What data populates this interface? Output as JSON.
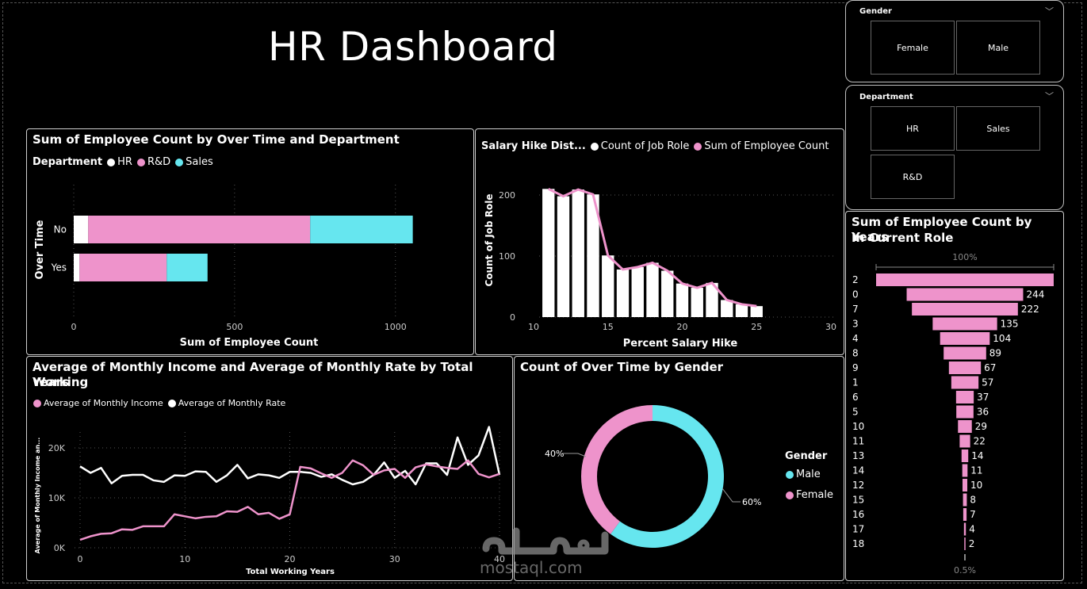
{
  "page": {
    "title": "HR Dashboard"
  },
  "slicers": {
    "gender": {
      "label": "Gender",
      "options": [
        "Female",
        "Male"
      ]
    },
    "department": {
      "label": "Department",
      "options": [
        "HR",
        "Sales",
        "R&D"
      ]
    }
  },
  "colors": {
    "hr": "#ffffff",
    "rd": "#ee93cb",
    "sales": "#66e6ef",
    "pink": "#ee93cb",
    "cyan": "#66e6ef",
    "white": "#ffffff"
  },
  "overtime_chart": {
    "title": "Sum of Employee Count by Over Time and Department",
    "legend_title": "Department",
    "legend": [
      "HR",
      "R&D",
      "Sales"
    ],
    "xlabel": "Sum of Employee Count",
    "ylabel": "Over Time",
    "ticks": [
      "0",
      "500",
      "1000"
    ]
  },
  "salary_chart": {
    "title": "Salary Hike Dist...",
    "legend": [
      "Count of Job Role",
      "Sum of Employee Count"
    ],
    "xlabel": "Percent Salary Hike",
    "ylabel": "Count of Job Role",
    "xticks": [
      "10",
      "15",
      "20",
      "25",
      "30"
    ],
    "yticks": [
      "0",
      "100",
      "200"
    ]
  },
  "income_chart": {
    "title_line1": "Average of Monthly Income and Average of Monthly Rate by Total Working",
    "title_line2": "Years",
    "legend": [
      "Average of Monthly Income",
      "Average of Monthly Rate"
    ],
    "xlabel": "Total Working Years",
    "ylabel": "Average of Monthly Income an...",
    "xticks": [
      "0",
      "10",
      "20",
      "30",
      "40"
    ],
    "yticks": [
      "0K",
      "10K",
      "20K"
    ]
  },
  "gender_chart": {
    "title": "Count of Over Time by Gender",
    "legend_title": "Gender",
    "legend": [
      "Male",
      "Female"
    ],
    "label_female": "40%",
    "label_male": "60%"
  },
  "funnel_chart": {
    "title_line1": "Sum of Employee Count by Years",
    "title_line2": "In Current Role",
    "top_label": "100%",
    "bottom_label": "0.5%"
  },
  "chart_data": [
    {
      "type": "bar",
      "title": "Sum of Employee Count by Over Time and Department",
      "orientation": "horizontal-stacked",
      "categories": [
        "No",
        "Yes"
      ],
      "series": [
        {
          "name": "HR",
          "values": [
            45,
            18
          ]
        },
        {
          "name": "R&D",
          "values": [
            690,
            271
          ]
        },
        {
          "name": "Sales",
          "values": [
            319,
            127
          ]
        }
      ],
      "xlabel": "Sum of Employee Count",
      "ylabel": "Over Time",
      "xlim": [
        0,
        1100
      ]
    },
    {
      "type": "bar",
      "title": "Salary Hike Dist...",
      "x": [
        11,
        12,
        13,
        14,
        15,
        16,
        17,
        18,
        19,
        20,
        21,
        22,
        23,
        24,
        25
      ],
      "series": [
        {
          "name": "Count of Job Role",
          "values": [
            210,
            198,
            209,
            201,
            101,
            78,
            82,
            89,
            76,
            55,
            48,
            56,
            28,
            21,
            18
          ]
        },
        {
          "name": "Sum of Employee Count",
          "values": [
            210,
            198,
            209,
            201,
            101,
            78,
            82,
            89,
            76,
            55,
            48,
            56,
            28,
            21,
            18
          ]
        }
      ],
      "xlabel": "Percent Salary Hike",
      "ylabel": "Count of Job Role",
      "xlim": [
        10,
        30
      ],
      "ylim": [
        0,
        230
      ]
    },
    {
      "type": "line",
      "title": "Average of Monthly Income and Average of Monthly Rate by Total Working Years",
      "x": [
        0,
        1,
        2,
        3,
        4,
        5,
        6,
        7,
        8,
        9,
        10,
        11,
        12,
        13,
        14,
        15,
        16,
        17,
        18,
        19,
        20,
        21,
        22,
        23,
        24,
        25,
        26,
        27,
        28,
        29,
        30,
        31,
        32,
        33,
        34,
        35,
        36,
        37,
        38,
        39,
        40
      ],
      "series": [
        {
          "name": "Average of Monthly Income",
          "values": [
            1600,
            2300,
            2800,
            2900,
            3700,
            3600,
            4300,
            4300,
            4300,
            6700,
            6300,
            5900,
            6200,
            6300,
            7300,
            7200,
            8200,
            6700,
            7000,
            5800,
            6700,
            16200,
            15900,
            14900,
            14000,
            15000,
            17500,
            16500,
            14600,
            15500,
            15800,
            14000,
            16100,
            16700,
            16300,
            16000,
            15800,
            17500,
            14800,
            14100,
            14800
          ]
        },
        {
          "name": "Average of Monthly Rate",
          "values": [
            16300,
            15000,
            16000,
            12900,
            14400,
            14600,
            14600,
            13500,
            13200,
            14500,
            14400,
            15300,
            15200,
            13200,
            14500,
            16600,
            13900,
            14700,
            14500,
            14000,
            15200,
            15200,
            15000,
            14200,
            14700,
            13600,
            12700,
            13200,
            14600,
            17100,
            14000,
            15400,
            12700,
            16900,
            16900,
            14600,
            22100,
            16600,
            18500,
            24200,
            14600
          ]
        }
      ],
      "xlabel": "Total Working Years",
      "ylabel": "Average of Monthly Income an...",
      "ylim": [
        0,
        26000
      ],
      "xlim": [
        0,
        40
      ]
    },
    {
      "type": "pie",
      "title": "Count of Over Time by Gender",
      "categories": [
        "Male",
        "Female"
      ],
      "values": [
        60,
        40
      ]
    },
    {
      "type": "bar",
      "title": "Sum of Employee Count by Years In Current Role",
      "orientation": "funnel",
      "categories": [
        "2",
        "0",
        "7",
        "3",
        "4",
        "8",
        "9",
        "1",
        "6",
        "5",
        "10",
        "11",
        "13",
        "14",
        "12",
        "15",
        "16",
        "17",
        "18"
      ],
      "values": [
        372,
        244,
        222,
        135,
        104,
        89,
        67,
        57,
        37,
        36,
        29,
        22,
        14,
        11,
        10,
        8,
        7,
        4,
        2
      ]
    }
  ]
}
